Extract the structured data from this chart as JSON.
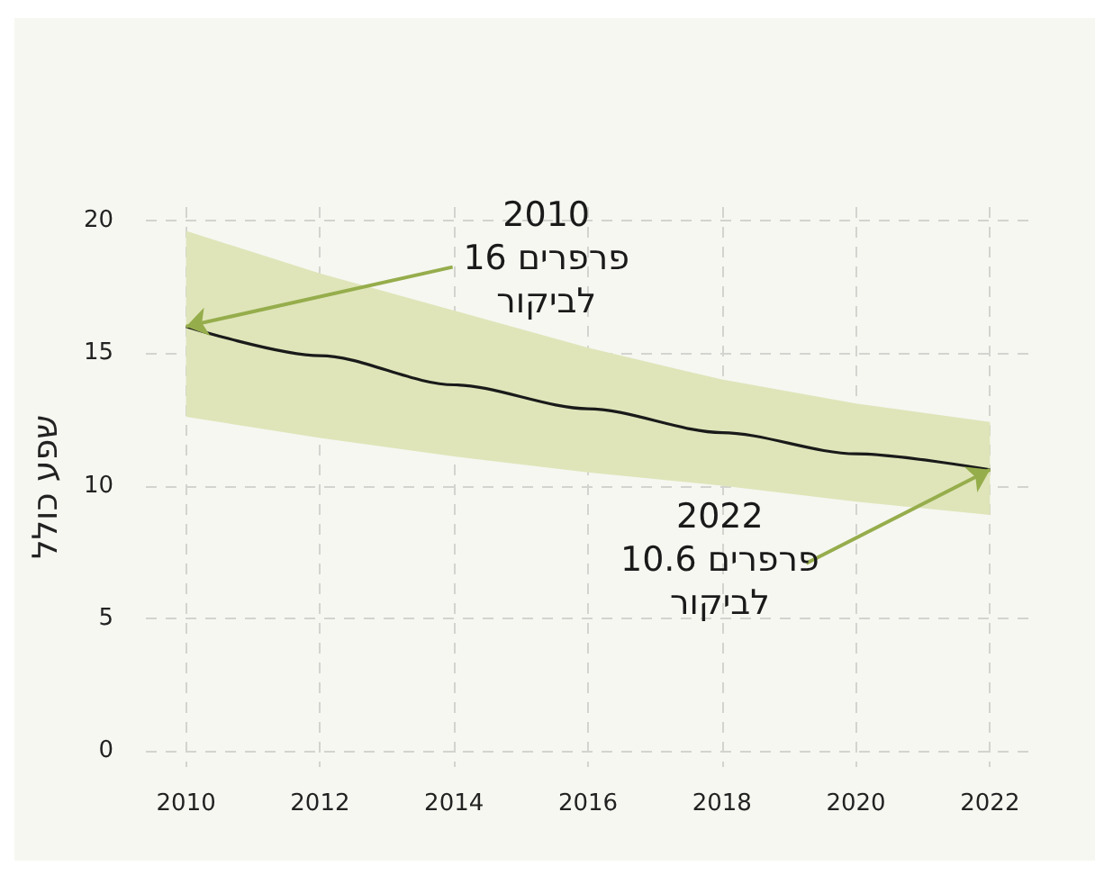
{
  "chart_data": {
    "type": "line",
    "ylabel": "שפע כולל",
    "x": [
      2010,
      2012,
      2014,
      2016,
      2018,
      2020,
      2022
    ],
    "series": [
      {
        "color": "#1a1a1a",
        "values": [
          16,
          14.9,
          13.8,
          12.9,
          12.0,
          11.2,
          10.6
        ],
        "lower": [
          12.6,
          11.8,
          11.1,
          10.5,
          10.0,
          9.4,
          8.9
        ],
        "upper": [
          19.6,
          18.0,
          16.6,
          15.2,
          14.0,
          13.1,
          12.4
        ]
      }
    ],
    "xlim": [
      2009.4,
      2022.6
    ],
    "xticks": [
      2010,
      2012,
      2014,
      2016,
      2018,
      2020,
      2022
    ],
    "ylim": [
      -0.6,
      20.5
    ],
    "yticks": [
      0,
      5,
      10,
      15,
      20
    ],
    "grid": true,
    "annotations": [
      {
        "text": "2010\n16 פרפרים\nלביקור",
        "x": 2010,
        "y": 16
      },
      {
        "text": "2022\n10.6 פרפרים\nלביקור",
        "x": 2022,
        "y": 10.6
      }
    ]
  }
}
